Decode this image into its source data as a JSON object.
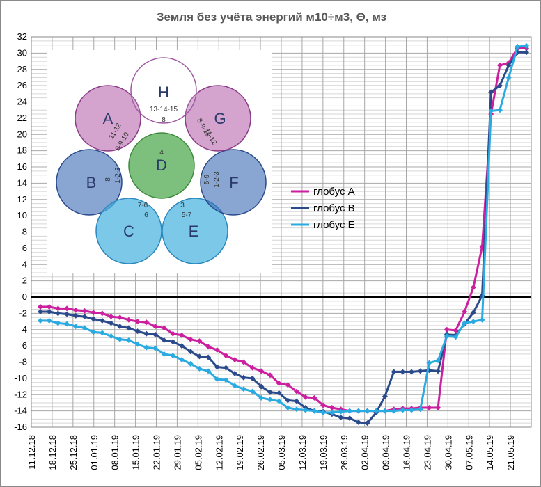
{
  "chart_data": {
    "type": "line",
    "title": "Земля без учёта энергий м10÷м3, Θ, мз",
    "xlabel": "",
    "ylabel": "",
    "ylim": [
      -16,
      32
    ],
    "y_ticks": [
      32,
      30,
      28,
      26,
      24,
      22,
      20,
      18,
      16,
      14,
      12,
      10,
      8,
      6,
      4,
      2,
      0,
      -2,
      -4,
      -6,
      -8,
      -10,
      -12,
      -14,
      -16
    ],
    "x_tick_labels": [
      "11.12.18",
      "18.12.18",
      "25.12.18",
      "01.01.19",
      "08.01.19",
      "15.01.19",
      "22.01.19",
      "29.01.19",
      "05.02.19",
      "12.02.19",
      "19.02.19",
      "26.02.19",
      "05.03.19",
      "12.03.19",
      "19.03.19",
      "26.03.19",
      "02.04.19",
      "09.04.19",
      "16.04.19",
      "23.04.19",
      "30.04.19",
      "07.05.19",
      "14.05.19",
      "21.05.19"
    ],
    "grid": true,
    "legend_position": "center-right",
    "series": [
      {
        "name": "глобус А",
        "color": "#cc1fa0",
        "values": [
          -1.2,
          -1.2,
          -1.4,
          -1.4,
          -1.6,
          -1.7,
          -1.9,
          -2.0,
          -2.4,
          -2.5,
          -2.8,
          -3.0,
          -3.1,
          -3.6,
          -3.8,
          -4.5,
          -4.7,
          -5.2,
          -5.4,
          -6.1,
          -6.5,
          -7.2,
          -7.7,
          -8.0,
          -8.7,
          -9.1,
          -9.6,
          -10.6,
          -10.8,
          -11.6,
          -12.3,
          -12.4,
          -13.3,
          -13.6,
          -13.8,
          -14.0,
          -14.0,
          -14.0,
          -14.0,
          -14.0,
          -13.8,
          -13.7,
          -13.7,
          -13.6,
          -13.6,
          -13.6,
          -4.0,
          -4.1,
          -1.8,
          1.2,
          6.2,
          22.5,
          28.5,
          28.8,
          30.6,
          30.6
        ]
      },
      {
        "name": "глобус В",
        "color": "#2a4a8c",
        "values": [
          -1.8,
          -1.8,
          -2.0,
          -2.1,
          -2.3,
          -2.4,
          -2.7,
          -2.9,
          -3.2,
          -3.6,
          -3.8,
          -4.2,
          -4.5,
          -4.6,
          -5.3,
          -5.5,
          -6.0,
          -6.7,
          -7.3,
          -7.4,
          -8.6,
          -8.7,
          -9.4,
          -9.9,
          -10.0,
          -11.0,
          -11.7,
          -11.8,
          -12.7,
          -12.8,
          -13.6,
          -14.0,
          -14.1,
          -14.4,
          -14.8,
          -14.9,
          -15.4,
          -15.5,
          -14.2,
          -12.2,
          -9.2,
          -9.2,
          -9.2,
          -9.1,
          -9.0,
          -9.1,
          -4.6,
          -4.7,
          -3.3,
          -1.9,
          0.2,
          25.2,
          26.0,
          28.5,
          30.1,
          30.1
        ]
      },
      {
        "name": "глобус Е",
        "color": "#29abe2",
        "values": [
          -2.9,
          -2.9,
          -3.2,
          -3.3,
          -3.6,
          -3.8,
          -4.3,
          -4.4,
          -4.8,
          -5.2,
          -5.3,
          -5.8,
          -6.2,
          -6.3,
          -7.0,
          -7.2,
          -7.7,
          -8.2,
          -8.8,
          -9.1,
          -10.1,
          -10.2,
          -10.9,
          -11.3,
          -11.6,
          -12.4,
          -12.6,
          -12.8,
          -13.6,
          -13.8,
          -13.9,
          -14.0,
          -14.2,
          -14.2,
          -14.1,
          -14.0,
          -14.0,
          -14.0,
          -14.0,
          -14.0,
          -14.0,
          -13.9,
          -13.9,
          -13.8,
          -8.1,
          -7.8,
          -4.8,
          -4.9,
          -3.2,
          -3.0,
          -2.8,
          22.9,
          23.0,
          27.0,
          30.8,
          30.9
        ]
      }
    ]
  },
  "diagram": {
    "circles": [
      {
        "label": "A",
        "pair": "11-12",
        "codes": "8-9-10"
      },
      {
        "label": "B",
        "pair": "8",
        "codes": "1-2-3"
      },
      {
        "label": "C",
        "pair": "7-6",
        "codes": "6"
      },
      {
        "label": "D",
        "pair": "4",
        "codes": ""
      },
      {
        "label": "E",
        "pair": "3",
        "codes": "5-7"
      },
      {
        "label": "F",
        "pair": "5-9",
        "codes": "1-2-3"
      },
      {
        "label": "G",
        "pair": "8-9-10",
        "codes": "11-12"
      },
      {
        "label": "H",
        "pair": "13-14-15",
        "codes": "8"
      }
    ]
  }
}
